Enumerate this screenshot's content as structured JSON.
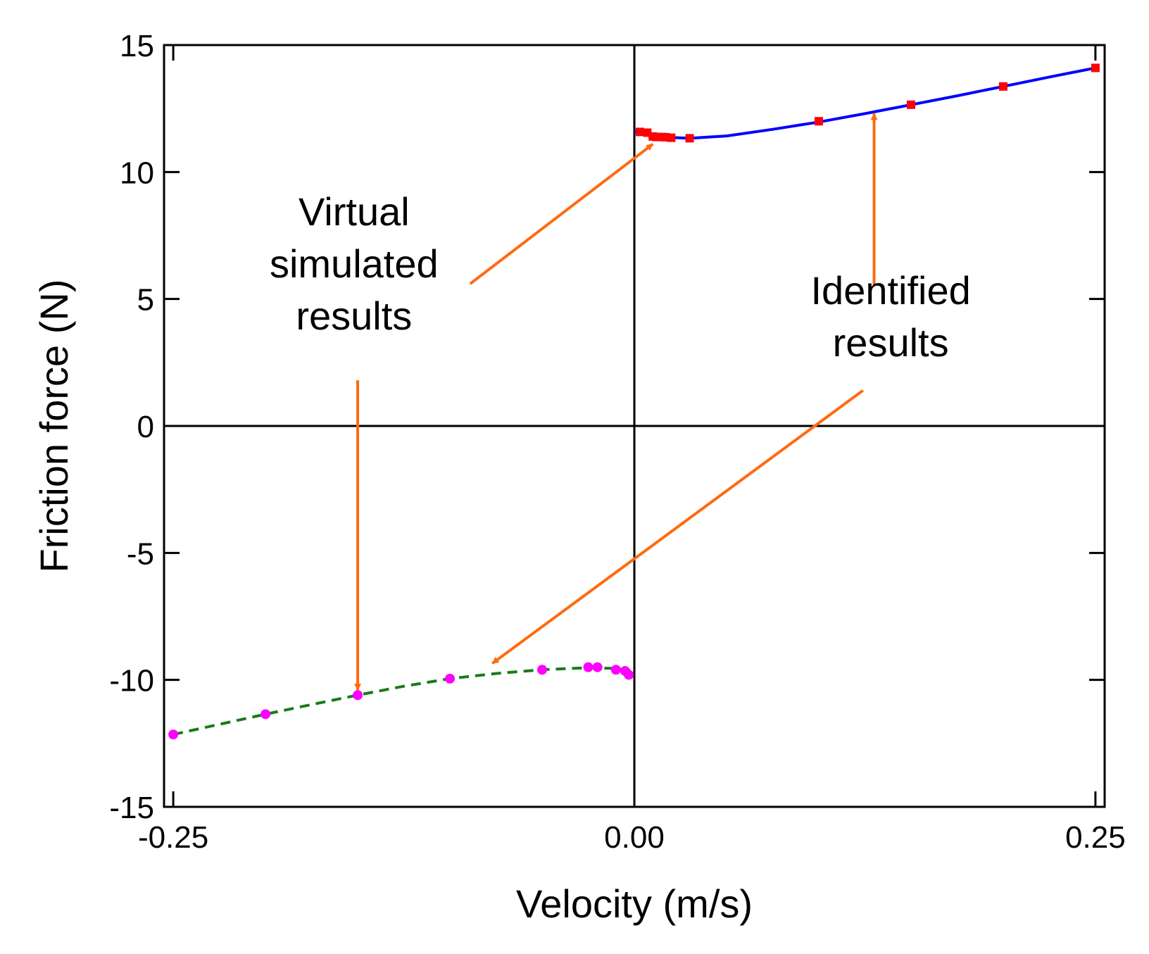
{
  "chart_data": {
    "type": "scatter",
    "title": "",
    "xlabel": "Velocity (m/s)",
    "ylabel": "Friction force (N)",
    "xlim": [
      -0.255,
      0.255
    ],
    "ylim": [
      -15,
      15
    ],
    "xticks": [
      -0.25,
      0.0,
      0.25
    ],
    "xtick_labels": [
      "-0.25",
      "0.00",
      "0.25"
    ],
    "yticks": [
      -15,
      -10,
      -5,
      0,
      5,
      10,
      15
    ],
    "ytick_labels": [
      "-15",
      "-10",
      "-5",
      "0",
      "5",
      "10",
      "15"
    ],
    "grid": false,
    "series": [
      {
        "name": "Virtual simulated results (positive)",
        "kind": "points",
        "marker": "square",
        "color": "#ff0000",
        "x": [
          0.003,
          0.007,
          0.01,
          0.012,
          0.015,
          0.017,
          0.02,
          0.03,
          0.1,
          0.15,
          0.2,
          0.25
        ],
        "y": [
          11.58,
          11.55,
          11.4,
          11.38,
          11.38,
          11.37,
          11.35,
          11.33,
          12.0,
          12.65,
          13.37,
          14.1
        ]
      },
      {
        "name": "Identified results (positive)",
        "kind": "line",
        "style": "solid",
        "color": "#0000ff",
        "x": [
          0.0,
          0.01,
          0.02,
          0.03,
          0.05,
          0.075,
          0.1,
          0.125,
          0.15,
          0.175,
          0.2,
          0.225,
          0.25
        ],
        "y": [
          11.62,
          11.45,
          11.36,
          11.33,
          11.42,
          11.68,
          11.97,
          12.3,
          12.65,
          13.0,
          13.37,
          13.74,
          14.1
        ]
      },
      {
        "name": "Virtual simulated results (negative)",
        "kind": "points",
        "marker": "circle",
        "color": "#ff00ff",
        "x": [
          -0.25,
          -0.2,
          -0.15,
          -0.1,
          -0.05,
          -0.025,
          -0.02,
          -0.01,
          -0.005,
          -0.003
        ],
        "y": [
          -12.15,
          -11.35,
          -10.6,
          -9.95,
          -9.6,
          -9.5,
          -9.5,
          -9.6,
          -9.65,
          -9.8
        ]
      },
      {
        "name": "Identified results (negative)",
        "kind": "line",
        "style": "dashed",
        "color": "#1a7a1a",
        "x": [
          -0.25,
          -0.225,
          -0.2,
          -0.175,
          -0.15,
          -0.125,
          -0.1,
          -0.075,
          -0.05,
          -0.025,
          -0.01,
          0.0
        ],
        "y": [
          -12.15,
          -11.75,
          -11.35,
          -10.97,
          -10.6,
          -10.25,
          -9.95,
          -9.75,
          -9.6,
          -9.52,
          -9.55,
          -9.65
        ]
      }
    ],
    "annotations": [
      {
        "lines": [
          "Virtual",
          "simulated",
          "results"
        ],
        "text_at": [
          -0.152,
          7.9
        ],
        "arrows": [
          {
            "from": [
              -0.089,
              5.6
            ],
            "to": [
              0.01,
              11.1
            ]
          },
          {
            "from": [
              -0.15,
              1.8
            ],
            "to": [
              -0.15,
              -10.4
            ]
          }
        ]
      },
      {
        "lines": [
          "Identified",
          "results"
        ],
        "text_at": [
          0.139,
          4.8
        ],
        "arrows": [
          {
            "from": [
              0.13,
              5.5
            ],
            "to": [
              0.13,
              12.3
            ]
          },
          {
            "from": [
              0.124,
              1.4
            ],
            "to": [
              -0.077,
              -9.35
            ]
          }
        ]
      }
    ],
    "annotation_color": "#ff6a10"
  }
}
